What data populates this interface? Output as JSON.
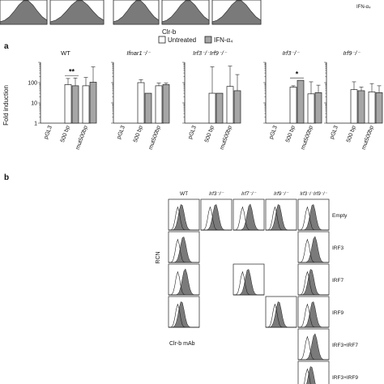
{
  "top_strip": {
    "xlabel": "Clr-b",
    "legend_fragment": "IFN-α₄"
  },
  "panel_a": {
    "label": "a",
    "ylabel": "Fold induction",
    "yticks": [
      "1",
      "10",
      "100"
    ],
    "legend": {
      "untreated": "Untreated",
      "ifn": "IFN-α₄"
    }
  },
  "panel_b": {
    "label": "b",
    "col_headers": [
      "WT",
      "Irf3⁻/⁻",
      "Irf7⁻/⁻",
      "Irf9⁻/⁻",
      "Irf3⁻/⁻Irf9⁻/⁻"
    ],
    "row_labels": [
      "Empty",
      "IRF3",
      "IRF7",
      "IRF9",
      "IRF3+IRF7",
      "IRF3+IRF9"
    ],
    "ylabel": "RCN",
    "xlabel": "Clr-b mAb",
    "grid": [
      [
        1,
        1,
        1,
        1,
        1
      ],
      [
        1,
        0,
        0,
        0,
        1
      ],
      [
        1,
        0,
        1,
        0,
        1
      ],
      [
        1,
        0,
        0,
        1,
        1
      ],
      [
        0,
        0,
        0,
        0,
        1
      ],
      [
        0,
        0,
        0,
        0,
        1
      ]
    ]
  },
  "colors": {
    "untreated": "#ffffff",
    "ifn": "#a6a6a6",
    "hist_fill": "#7a7a7a",
    "axis": "#222222"
  },
  "chart_data": {
    "type": "bar",
    "ylabel": "Fold induction",
    "yscale": "log",
    "ylim": [
      1,
      1000
    ],
    "categories": [
      "pGL3",
      "500 bp",
      "mut500bp"
    ],
    "series_names": [
      "Untreated",
      "IFN-α₄"
    ],
    "panels": [
      {
        "title": "WT",
        "untreated": [
          0,
          80,
          70
        ],
        "ifn": [
          0,
          70,
          105
        ],
        "err_untreated": [
          0,
          160,
          180
        ],
        "err_ifn": [
          0,
          170,
          600
        ],
        "sig": {
          "label": "**",
          "category": "500 bp"
        }
      },
      {
        "title": "Ifnar1⁻/⁻",
        "untreated": [
          0,
          100,
          70
        ],
        "ifn": [
          0,
          30,
          80
        ],
        "err_untreated": [
          0,
          140,
          95
        ],
        "err_ifn": [
          0,
          0,
          95
        ],
        "sig": null
      },
      {
        "title": "Irf3⁻/⁻Irf9⁻/⁻",
        "untreated": [
          0,
          30,
          65
        ],
        "ifn": [
          0,
          30,
          40
        ],
        "err_untreated": [
          0,
          600,
          650
        ],
        "err_ifn": [
          0,
          0,
          250
        ],
        "sig": null
      },
      {
        "title": "Irf3⁻/⁻",
        "untreated": [
          0,
          60,
          28
        ],
        "ifn": [
          0,
          130,
          32
        ],
        "err_untreated": [
          0,
          70,
          110
        ],
        "err_ifn": [
          0,
          0,
          75
        ],
        "sig": {
          "label": "*",
          "category": "500 bp"
        }
      },
      {
        "title": "Irf9⁻/⁻",
        "untreated": [
          0,
          45,
          35
        ],
        "ifn": [
          0,
          40,
          32
        ],
        "err_untreated": [
          0,
          110,
          90
        ],
        "err_ifn": [
          0,
          60,
          70
        ],
        "sig": null
      }
    ]
  }
}
